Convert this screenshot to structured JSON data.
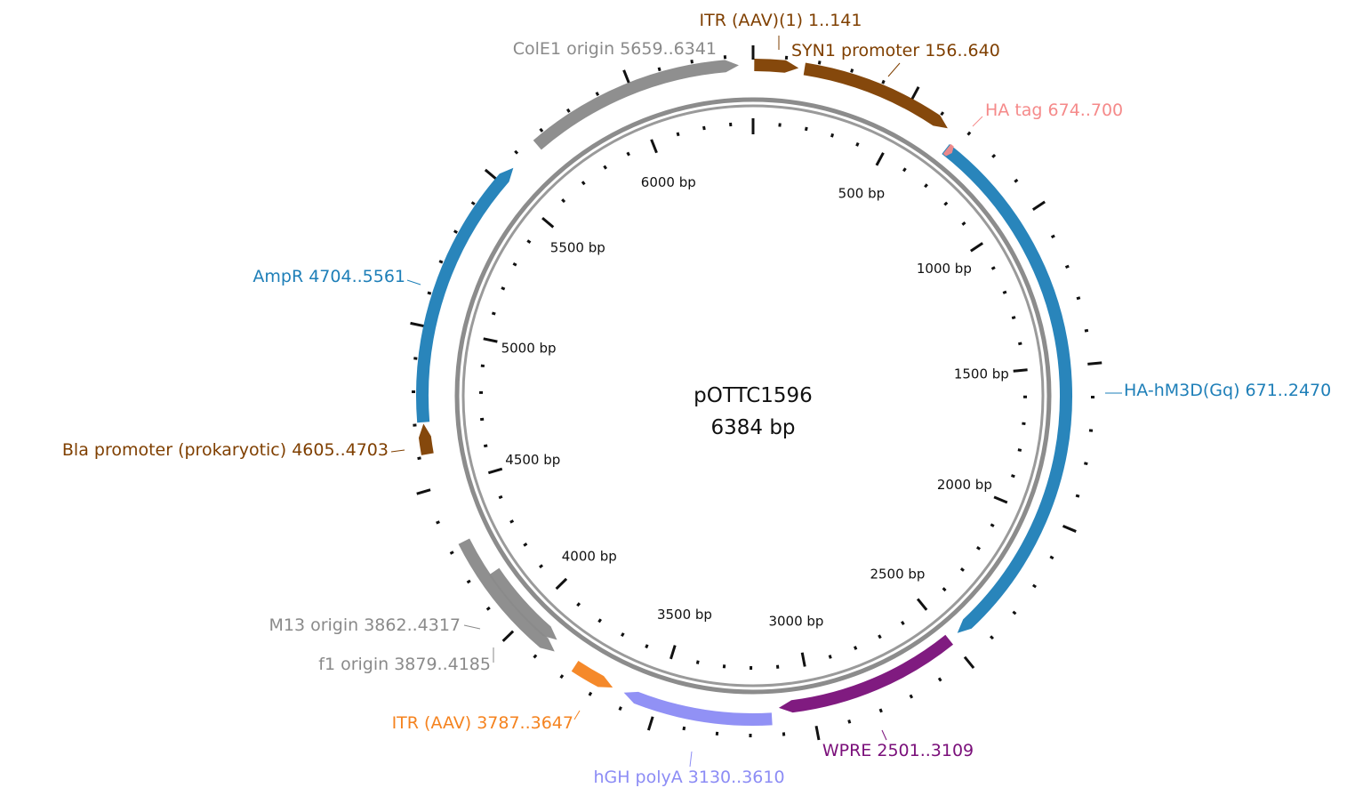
{
  "plasmid": {
    "name": "pOTTC1596",
    "length_label": "6384 bp",
    "length_bp": 6384
  },
  "tick_labels": [
    {
      "bp": 500,
      "text": "500 bp"
    },
    {
      "bp": 1000,
      "text": "1000 bp"
    },
    {
      "bp": 1500,
      "text": "1500 bp"
    },
    {
      "bp": 2000,
      "text": "2000 bp"
    },
    {
      "bp": 2500,
      "text": "2500 bp"
    },
    {
      "bp": 3000,
      "text": "3000 bp"
    },
    {
      "bp": 3500,
      "text": "3500 bp"
    },
    {
      "bp": 4000,
      "text": "4000 bp"
    },
    {
      "bp": 4500,
      "text": "4500 bp"
    },
    {
      "bp": 5000,
      "text": "5000 bp"
    },
    {
      "bp": 5500,
      "text": "5500 bp"
    },
    {
      "bp": 6000,
      "text": "6000 bp"
    }
  ],
  "features": [
    {
      "id": "itr-aav-1",
      "label": "ITR (AAV)(1) 1..141",
      "start": 1,
      "end": 141,
      "strand": 1,
      "color": "#7f3f00"
    },
    {
      "id": "syn1-promoter",
      "label": "SYN1 promoter 156..640",
      "start": 156,
      "end": 640,
      "strand": 1,
      "color": "#7f3f00"
    },
    {
      "id": "ha-tag",
      "label": "HA tag 674..700",
      "start": 674,
      "end": 700,
      "strand": 1,
      "color": "#f58a8a"
    },
    {
      "id": "ha-hm3d-gq",
      "label": "HA-hM3D(Gq) 671..2470",
      "start": 671,
      "end": 2470,
      "strand": 1,
      "color": "#1e7fb8"
    },
    {
      "id": "wpre",
      "label": "WPRE 2501..3109",
      "start": 2501,
      "end": 3109,
      "strand": 1,
      "color": "#7a0f7a"
    },
    {
      "id": "hgh-polya",
      "label": "hGH polyA 3130..3610",
      "start": 3130,
      "end": 3610,
      "strand": 1,
      "color": "#8c8cf5"
    },
    {
      "id": "itr-aav-2",
      "label": "ITR (AAV) 3787..3647",
      "start": 3647,
      "end": 3787,
      "strand": -1,
      "color": "#f5831f"
    },
    {
      "id": "f1-origin",
      "label": "f1 origin 3879..4185",
      "start": 3879,
      "end": 4185,
      "strand": -1,
      "color": "#8a8a8a"
    },
    {
      "id": "m13-origin",
      "label": "M13 origin 3862..4317",
      "start": 3862,
      "end": 4317,
      "strand": -1,
      "color": "#8a8a8a"
    },
    {
      "id": "bla-promoter",
      "label": "Bla promoter (prokaryotic) 4605..4703",
      "start": 4605,
      "end": 4703,
      "strand": 1,
      "color": "#7f3f00"
    },
    {
      "id": "ampr",
      "label": "AmpR 4704..5561",
      "start": 4704,
      "end": 5561,
      "strand": 1,
      "color": "#1e7fb8"
    },
    {
      "id": "cole1-origin",
      "label": "ColE1 origin 5659..6341",
      "start": 5659,
      "end": 6341,
      "strand": 1,
      "color": "#8a8a8a"
    }
  ],
  "colors": {
    "backbone": "#8c8c8c",
    "tick": "#111111"
  }
}
